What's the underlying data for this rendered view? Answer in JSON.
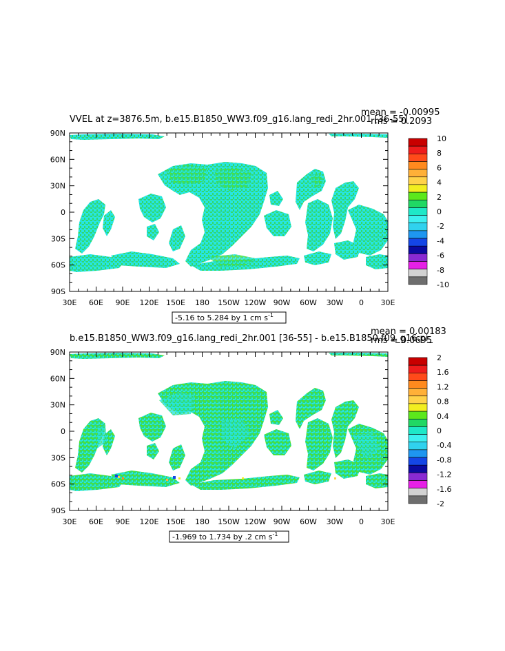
{
  "lon_ticks": [
    "30E",
    "60E",
    "90E",
    "120E",
    "150E",
    "180",
    "150W",
    "120W",
    "90W",
    "60W",
    "30W",
    "0",
    "30E"
  ],
  "lat_ticks": [
    "90N",
    "60N",
    "30N",
    "0",
    "30S",
    "60S",
    "90S"
  ],
  "panels": [
    {
      "title": "VVEL at z=3876.5m, b.e15.B1850_WW3.f09_g16.lang_redi_2hr.001 [36-55]",
      "mean_label": "mean = -0.00995",
      "rms_label": "rms = 0.2093",
      "range_label": "-5.16 to 5.284 by 1 cm s",
      "range_exp": "-1",
      "colorbar": {
        "labels": [
          "10",
          "8",
          "6",
          "4",
          "2",
          "0",
          "-2",
          "-4",
          "-6",
          "-8",
          "-10"
        ],
        "colors": [
          "#c80000",
          "#ee1c1c",
          "#ff4a1a",
          "#ff8a1e",
          "#ffb038",
          "#ffd24a",
          "#f2ee20",
          "#5ce81c",
          "#20d864",
          "#1ee8c8",
          "#3cf0f0",
          "#30d2ee",
          "#1e96f0",
          "#1446e6",
          "#0a0aa0",
          "#8a2ad2",
          "#e620e6",
          "#d2d2d2",
          "#6e6e6e"
        ]
      }
    },
    {
      "title": "b.e15.B1850_WW3.f09_g16.lang_redi_2hr.001 [36-55] - b.e15.B1850.f09_g16.pi_",
      "mean_label": "mean = 0.00183",
      "rms_label": "rms = 0.0695",
      "range_label": "-1.969 to 1.734 by .2 cm s",
      "range_exp": "-1",
      "colorbar": {
        "labels": [
          "2",
          "1.6",
          "1.2",
          "0.8",
          "0.4",
          "0",
          "-0.4",
          "-0.8",
          "-1.2",
          "-1.6",
          "-2"
        ],
        "colors": [
          "#c80000",
          "#ee1c1c",
          "#ff4a1a",
          "#ff8a1e",
          "#ffb038",
          "#ffd24a",
          "#f2ee20",
          "#5ce81c",
          "#20d864",
          "#1ee8c8",
          "#3cf0f0",
          "#30d2ee",
          "#1e96f0",
          "#1446e6",
          "#0a0aa0",
          "#8a2ad2",
          "#e620e6",
          "#d2d2d2",
          "#6e6e6e"
        ]
      }
    }
  ],
  "field_colors": {
    "mostly": "#27e6e0",
    "mix": "#33d96a",
    "ocean_empty": "#ffffff"
  }
}
